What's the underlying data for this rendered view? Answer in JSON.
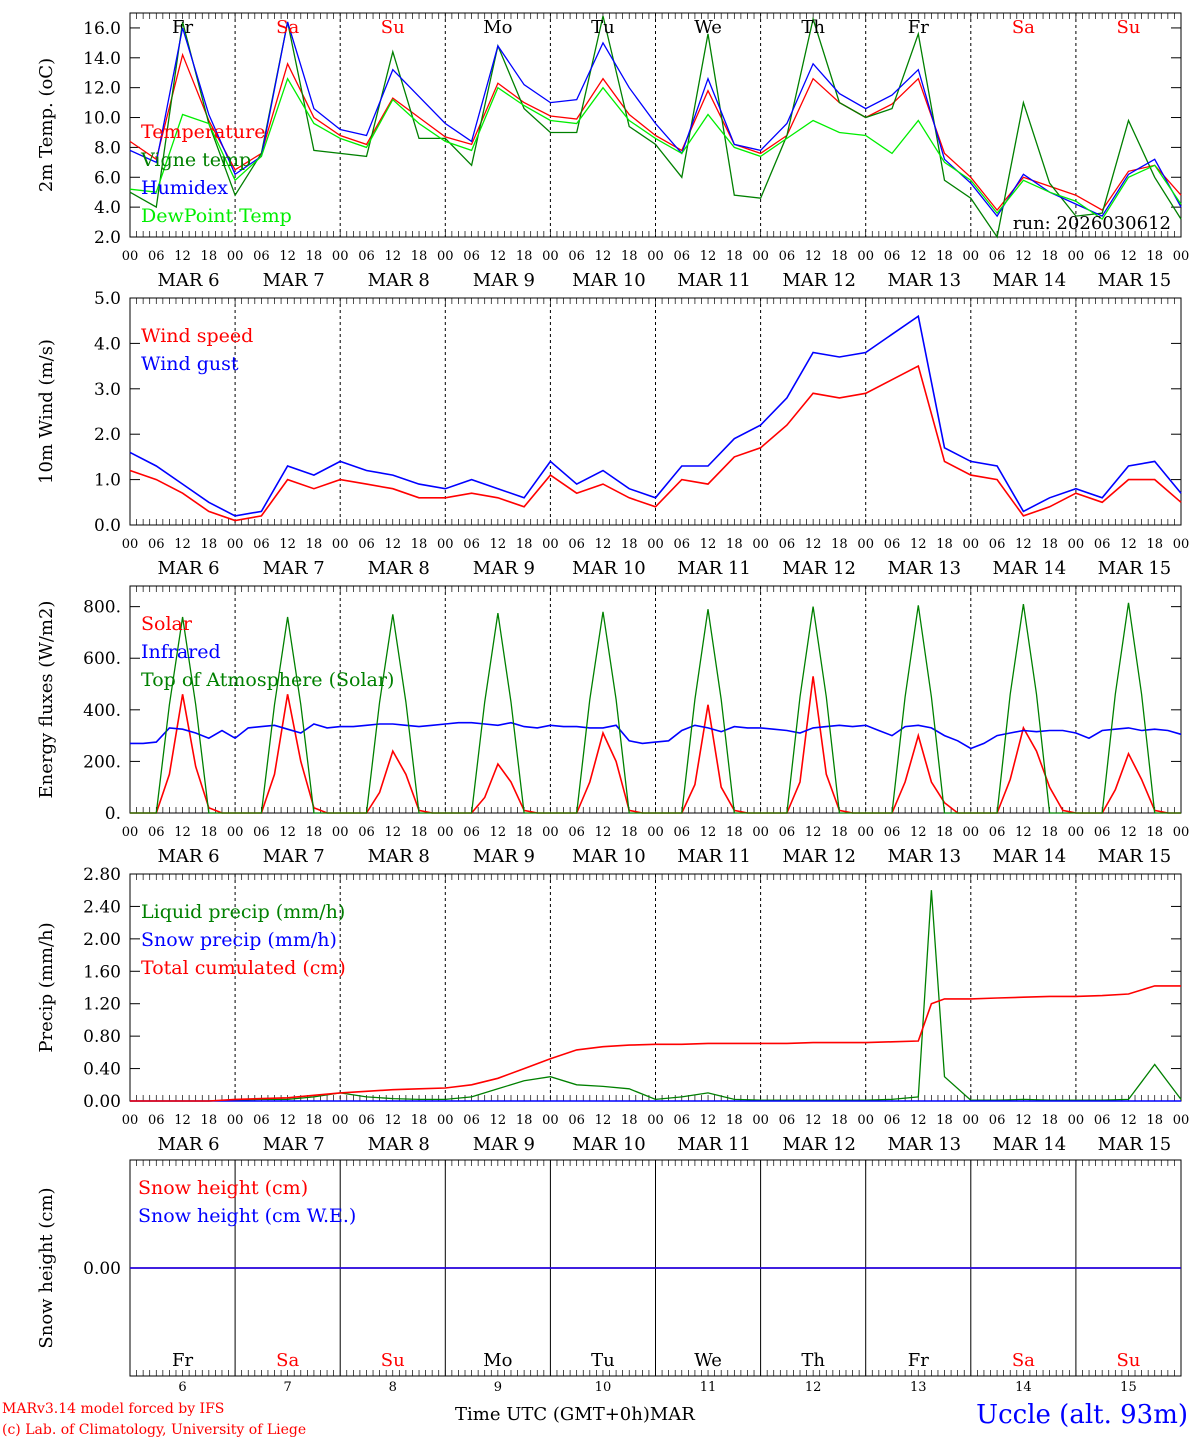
{
  "run_label": "run: 2026030612",
  "time_axis": {
    "hours": [
      "00",
      "06",
      "12",
      "18"
    ],
    "final_hour": "00",
    "month": "MAR",
    "dates": [
      "6",
      "7",
      "8",
      "9",
      "10",
      "11",
      "12",
      "13",
      "14",
      "15"
    ],
    "day_names": [
      "Fr",
      "Sa",
      "Su",
      "Mo",
      "Tu",
      "We",
      "Th",
      "Fr",
      "Sa",
      "Su"
    ],
    "weekend_flags": [
      false,
      true,
      true,
      false,
      false,
      false,
      false,
      false,
      true,
      true
    ],
    "xlabel": "Time UTC (GMT+0h)",
    "xlabel_month": "MAR"
  },
  "footer": {
    "line1": "MARv3.14 model forced by IFS",
    "line2": "(c) Lab. of Climatology, University of Liege",
    "station": "Uccle (alt. 93m)"
  },
  "colors": {
    "red": "#ff0000",
    "green": "#008000",
    "blue": "#0000ff",
    "light_green": "#00ee00",
    "weekend": "#ff0000"
  },
  "chart_data": [
    {
      "type": "line",
      "title": "2m Temperature",
      "ylabel": "2m Temp. (oC)",
      "ylim": [
        2,
        17
      ],
      "yticks": [
        "2.0",
        "4.0",
        "6.0",
        "8.0",
        "10.0",
        "12.0",
        "14.0",
        "16.0"
      ],
      "ytick_values": [
        2,
        4,
        6,
        8,
        10,
        12,
        14,
        16
      ],
      "legend": [
        "Temperature",
        "Vigne temp",
        "Humidex",
        "DewPoint Temp"
      ],
      "x_hours": [
        0,
        6,
        12,
        18,
        24,
        30,
        36,
        42,
        48,
        54,
        60,
        66,
        72,
        78,
        84,
        90,
        96,
        102,
        108,
        114,
        120,
        126,
        132,
        138,
        144,
        150,
        156,
        162,
        168,
        174,
        180,
        186,
        192,
        198,
        204,
        210,
        216,
        222,
        228,
        234,
        240
      ],
      "series": [
        {
          "name": "Temperature",
          "color": "red",
          "values": [
            8.4,
            7.2,
            14.2,
            9.8,
            6.5,
            7.6,
            13.6,
            10.0,
            8.8,
            8.2,
            11.3,
            10.0,
            8.7,
            8.2,
            12.3,
            11.0,
            10.1,
            9.9,
            12.6,
            10.2,
            8.8,
            7.8,
            11.8,
            8.2,
            7.6,
            8.8,
            12.6,
            11.0,
            10.0,
            10.9,
            12.6,
            7.6,
            6.0,
            3.8,
            6.0,
            5.4,
            4.8,
            3.8,
            6.4,
            6.8,
            4.8
          ]
        },
        {
          "name": "Vigne temp",
          "color": "green",
          "values": [
            5.0,
            4.0,
            16.4,
            9.6,
            4.8,
            7.6,
            16.4,
            7.8,
            7.6,
            7.4,
            14.4,
            8.6,
            8.6,
            6.8,
            14.8,
            10.6,
            9.0,
            9.0,
            16.8,
            9.4,
            8.2,
            6.0,
            15.6,
            4.8,
            4.6,
            8.8,
            16.6,
            11.0,
            10.0,
            10.6,
            15.6,
            5.8,
            4.6,
            1.8,
            11.0,
            5.6,
            3.4,
            3.6,
            9.8,
            6.0,
            3.2
          ]
        },
        {
          "name": "Humidex",
          "color": "blue",
          "values": [
            7.8,
            7.0,
            16.0,
            10.2,
            6.2,
            7.4,
            16.4,
            10.6,
            9.2,
            8.8,
            13.2,
            11.4,
            9.6,
            8.4,
            14.8,
            12.2,
            11.0,
            11.2,
            15.0,
            12.0,
            9.6,
            7.6,
            12.6,
            8.2,
            7.8,
            9.6,
            13.6,
            11.6,
            10.6,
            11.5,
            13.2,
            7.2,
            5.6,
            3.4,
            6.2,
            5.0,
            4.2,
            3.4,
            6.2,
            7.2,
            4.0
          ]
        },
        {
          "name": "DewPoint Temp",
          "color": "light_green",
          "values": [
            5.2,
            5.0,
            10.2,
            9.6,
            5.8,
            7.4,
            12.6,
            9.6,
            8.6,
            8.0,
            11.2,
            9.6,
            8.4,
            7.8,
            12.0,
            10.8,
            9.8,
            9.6,
            12.0,
            9.8,
            8.6,
            7.6,
            10.2,
            8.0,
            7.4,
            8.6,
            9.8,
            9.0,
            8.8,
            7.6,
            9.8,
            7.0,
            5.8,
            3.6,
            5.8,
            5.0,
            4.4,
            3.2,
            6.0,
            6.8,
            4.2
          ]
        }
      ]
    },
    {
      "type": "line",
      "title": "10m Wind",
      "ylabel": "10m Wind (m/s)",
      "ylim": [
        0,
        5
      ],
      "yticks": [
        "0.0",
        "1.0",
        "2.0",
        "3.0",
        "4.0",
        "5.0"
      ],
      "ytick_values": [
        0,
        1,
        2,
        3,
        4,
        5
      ],
      "legend": [
        "Wind speed",
        "Wind gust"
      ],
      "x_hours": [
        0,
        6,
        12,
        18,
        24,
        30,
        36,
        42,
        48,
        54,
        60,
        66,
        72,
        78,
        84,
        90,
        96,
        102,
        108,
        114,
        120,
        126,
        132,
        138,
        144,
        150,
        156,
        162,
        168,
        174,
        180,
        186,
        192,
        198,
        204,
        210,
        216,
        222,
        228,
        234,
        240
      ],
      "series": [
        {
          "name": "Wind speed",
          "color": "red",
          "values": [
            1.2,
            1.0,
            0.7,
            0.3,
            0.1,
            0.2,
            1.0,
            0.8,
            1.0,
            0.9,
            0.8,
            0.6,
            0.6,
            0.7,
            0.6,
            0.4,
            1.1,
            0.7,
            0.9,
            0.6,
            0.4,
            1.0,
            0.9,
            1.5,
            1.7,
            2.2,
            2.9,
            2.8,
            2.9,
            3.2,
            3.5,
            1.4,
            1.1,
            1.0,
            0.2,
            0.4,
            0.7,
            0.5,
            1.0,
            1.0,
            0.5
          ]
        },
        {
          "name": "Wind gust",
          "color": "blue",
          "values": [
            1.6,
            1.3,
            0.9,
            0.5,
            0.2,
            0.3,
            1.3,
            1.1,
            1.4,
            1.2,
            1.1,
            0.9,
            0.8,
            1.0,
            0.8,
            0.6,
            1.4,
            0.9,
            1.2,
            0.8,
            0.6,
            1.3,
            1.3,
            1.9,
            2.2,
            2.8,
            3.8,
            3.7,
            3.8,
            4.2,
            4.6,
            1.7,
            1.4,
            1.3,
            0.3,
            0.6,
            0.8,
            0.6,
            1.3,
            1.4,
            0.7
          ]
        }
      ]
    },
    {
      "type": "line",
      "title": "Energy fluxes",
      "ylabel": "Energy fluxes (W/m2)",
      "ylim": [
        0,
        880
      ],
      "yticks": [
        "0.",
        "200.",
        "400.",
        "600.",
        "800."
      ],
      "ytick_values": [
        0,
        200,
        400,
        600,
        800
      ],
      "legend": [
        "Solar",
        "Infrared",
        "Top of Atmosphere (Solar)"
      ],
      "x_hours": [
        0,
        3,
        6,
        9,
        12,
        15,
        18,
        21,
        24,
        27,
        30,
        33,
        36,
        39,
        42,
        45,
        48,
        51,
        54,
        57,
        60,
        63,
        66,
        69,
        72,
        75,
        78,
        81,
        84,
        87,
        90,
        93,
        96,
        99,
        102,
        105,
        108,
        111,
        114,
        117,
        120,
        123,
        126,
        129,
        132,
        135,
        138,
        141,
        144,
        147,
        150,
        153,
        156,
        159,
        162,
        165,
        168,
        171,
        174,
        177,
        180,
        183,
        186,
        189,
        192,
        195,
        198,
        201,
        204,
        207,
        210,
        213,
        216,
        219,
        222,
        225,
        228,
        231,
        234,
        237,
        240
      ],
      "series": [
        {
          "name": "Solar",
          "color": "red",
          "values": [
            0,
            0,
            0,
            150,
            460,
            180,
            20,
            0,
            0,
            0,
            0,
            150,
            460,
            200,
            20,
            0,
            0,
            0,
            0,
            80,
            240,
            150,
            10,
            0,
            0,
            0,
            0,
            60,
            190,
            120,
            10,
            0,
            0,
            0,
            0,
            120,
            310,
            200,
            10,
            0,
            0,
            0,
            0,
            110,
            420,
            100,
            10,
            0,
            0,
            0,
            0,
            120,
            530,
            150,
            10,
            0,
            0,
            0,
            0,
            120,
            300,
            120,
            40,
            0,
            0,
            0,
            0,
            130,
            330,
            240,
            100,
            10,
            0,
            0,
            0,
            90,
            230,
            130,
            10,
            0,
            0
          ]
        },
        {
          "name": "Infrared",
          "color": "blue",
          "values": [
            270,
            270,
            275,
            330,
            325,
            310,
            290,
            320,
            290,
            330,
            335,
            340,
            325,
            310,
            345,
            330,
            335,
            335,
            340,
            345,
            345,
            340,
            335,
            340,
            345,
            350,
            350,
            345,
            340,
            350,
            335,
            330,
            340,
            335,
            335,
            330,
            330,
            340,
            280,
            270,
            275,
            280,
            320,
            340,
            330,
            315,
            335,
            330,
            330,
            325,
            320,
            310,
            330,
            335,
            340,
            335,
            340,
            320,
            300,
            335,
            340,
            330,
            300,
            280,
            250,
            270,
            300,
            310,
            320,
            315,
            320,
            320,
            310,
            290,
            320,
            325,
            330,
            320,
            325,
            320,
            305
          ]
        },
        {
          "name": "Top of Atmosphere (Solar)",
          "color": "green",
          "values": [
            0,
            0,
            0,
            420,
            760,
            420,
            0,
            0,
            0,
            0,
            0,
            420,
            760,
            420,
            0,
            0,
            0,
            0,
            0,
            430,
            770,
            430,
            0,
            0,
            0,
            0,
            0,
            430,
            775,
            430,
            0,
            0,
            0,
            0,
            0,
            440,
            780,
            440,
            0,
            0,
            0,
            0,
            0,
            440,
            790,
            440,
            0,
            0,
            0,
            0,
            0,
            450,
            800,
            450,
            0,
            0,
            0,
            0,
            0,
            450,
            805,
            450,
            0,
            0,
            0,
            0,
            0,
            460,
            810,
            460,
            0,
            0,
            0,
            0,
            0,
            460,
            815,
            460,
            0,
            0,
            0
          ]
        }
      ]
    },
    {
      "type": "line",
      "title": "Precip",
      "ylabel": "Precip (mm/h)",
      "ylim": [
        0,
        2.8
      ],
      "yticks": [
        "0.00",
        "0.40",
        "0.80",
        "1.20",
        "1.60",
        "2.00",
        "2.40",
        "2.80"
      ],
      "ytick_values": [
        0,
        0.4,
        0.8,
        1.2,
        1.6,
        2.0,
        2.4,
        2.8
      ],
      "legend": [
        "Liquid precip (mm/h)",
        "Snow precip (mm/h)",
        "Total cumulated (cm)"
      ],
      "x_hours": [
        0,
        6,
        12,
        18,
        24,
        30,
        36,
        42,
        48,
        54,
        60,
        66,
        72,
        78,
        84,
        90,
        96,
        102,
        108,
        114,
        120,
        126,
        132,
        138,
        144,
        150,
        156,
        162,
        168,
        174,
        180,
        183,
        186,
        192,
        198,
        204,
        210,
        216,
        222,
        228,
        234,
        240
      ],
      "series": [
        {
          "name": "Liquid precip (mm/h)",
          "color": "green",
          "values": [
            0,
            0,
            0,
            0,
            0.01,
            0.02,
            0.02,
            0.05,
            0.1,
            0.05,
            0.03,
            0.02,
            0.02,
            0.05,
            0.15,
            0.25,
            0.3,
            0.2,
            0.18,
            0.15,
            0.02,
            0.05,
            0.1,
            0.02,
            0.01,
            0.01,
            0.01,
            0.01,
            0.01,
            0.02,
            0.05,
            2.6,
            0.3,
            0.01,
            0.01,
            0.02,
            0.01,
            0.01,
            0.01,
            0.02,
            0.45,
            0.02
          ]
        },
        {
          "name": "Snow precip (mm/h)",
          "color": "blue",
          "values": [
            0,
            0,
            0,
            0,
            0,
            0,
            0,
            0,
            0,
            0,
            0,
            0,
            0,
            0,
            0,
            0,
            0,
            0,
            0,
            0,
            0,
            0,
            0,
            0,
            0,
            0,
            0,
            0,
            0,
            0,
            0,
            0,
            0,
            0,
            0,
            0,
            0,
            0,
            0,
            0,
            0,
            0
          ]
        },
        {
          "name": "Total cumulated (cm)",
          "color": "red",
          "values": [
            0,
            0,
            0,
            0,
            0.02,
            0.03,
            0.04,
            0.07,
            0.1,
            0.12,
            0.14,
            0.15,
            0.16,
            0.2,
            0.28,
            0.4,
            0.52,
            0.63,
            0.67,
            0.69,
            0.7,
            0.7,
            0.71,
            0.71,
            0.71,
            0.71,
            0.72,
            0.72,
            0.72,
            0.73,
            0.74,
            1.2,
            1.26,
            1.26,
            1.27,
            1.28,
            1.29,
            1.29,
            1.3,
            1.32,
            1.42,
            1.42
          ]
        }
      ]
    },
    {
      "type": "line",
      "title": "Snow height",
      "ylabel": "Snow height (cm)",
      "ylim": [
        -1,
        1
      ],
      "yticks": [
        "0.00"
      ],
      "ytick_values": [
        0
      ],
      "legend": [
        "Snow height (cm)",
        "Snow height (cm W.E.)"
      ],
      "x_hours": [
        0,
        240
      ],
      "series": [
        {
          "name": "Snow height (cm)",
          "color": "red",
          "values": [
            0,
            0
          ]
        },
        {
          "name": "Snow height (cm W.E.)",
          "color": "blue",
          "values": [
            0,
            0
          ]
        }
      ]
    }
  ]
}
